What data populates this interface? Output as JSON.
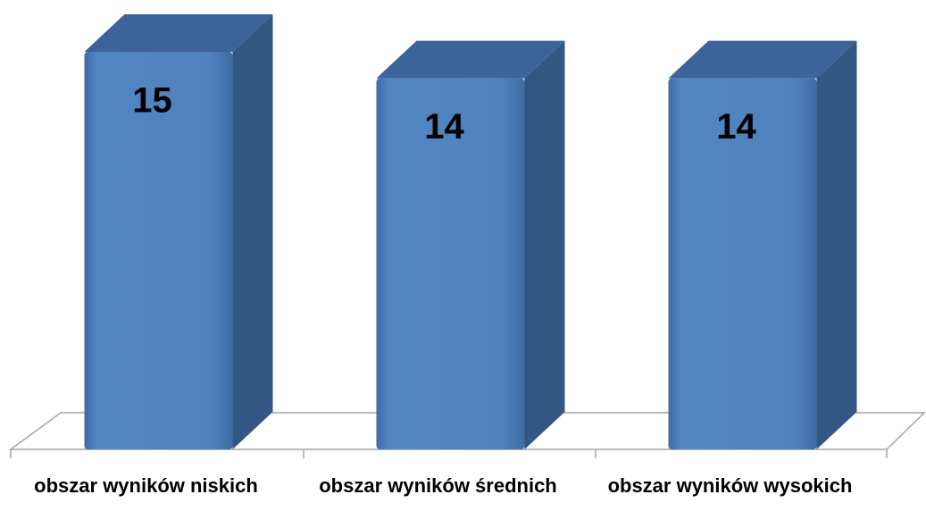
{
  "chart_data": {
    "type": "bar3d",
    "categories": [
      "obszar wyników niskich",
      "obszar wyników średnich",
      "obszar wyników wysokich"
    ],
    "values": [
      15,
      14,
      14
    ],
    "color": "#4f81bd"
  }
}
